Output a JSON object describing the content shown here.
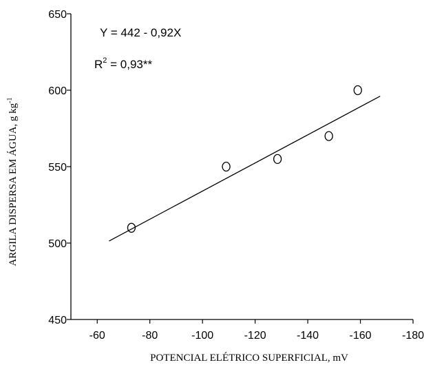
{
  "chart_data": {
    "type": "scatter",
    "title": "",
    "xlabel": "POTENCIAL ELÉTRICO  SUPERFICIAL, mV",
    "ylabel": "ARGILA DISPERSA EM ÁGUA, g kg",
    "ylabel_superscript": "-1",
    "xlim": [
      -50,
      -180
    ],
    "ylim": [
      450,
      650
    ],
    "x_ticks": [
      -60,
      -80,
      -100,
      -120,
      -140,
      -160,
      -180
    ],
    "y_ticks": [
      450,
      500,
      550,
      600,
      650
    ],
    "x_tick_labels": [
      "-60",
      "-80",
      "-100",
      "-120",
      "-140",
      "-160",
      "-180"
    ],
    "y_tick_labels": [
      "450",
      "500",
      "550",
      "600",
      "650"
    ],
    "grid": false,
    "series": [
      {
        "marker": "open-circle",
        "x": [
          -73,
          -109,
          -128.5,
          -148,
          -159
        ],
        "y": [
          510,
          550,
          555,
          570,
          600
        ]
      }
    ],
    "regression": {
      "intercept": 442,
      "slope": -0.92,
      "x_range": [
        -64.5,
        -167.5
      ]
    },
    "annotations": {
      "equation": "Y = 442 - 0,92X",
      "r2_prefix": "R",
      "r2_sup": "2",
      "r2_suffix": " = 0,93**"
    }
  }
}
